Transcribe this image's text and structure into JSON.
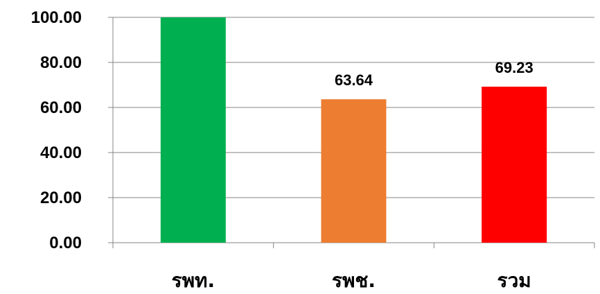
{
  "chart_data": {
    "type": "bar",
    "categories": [
      "รพท.",
      "รพช.",
      "รวม"
    ],
    "values": [
      100.0,
      63.64,
      69.23
    ],
    "data_labels": [
      "",
      "63.64",
      "69.23"
    ],
    "colors": [
      "#00b050",
      "#ed7d31",
      "#ff0000"
    ],
    "ylim": [
      0,
      100
    ],
    "yticks": [
      0,
      20,
      40,
      60,
      80,
      100
    ],
    "ytick_labels": [
      "0.00",
      "20.00",
      "40.00",
      "60.00",
      "80.00",
      "100.00"
    ],
    "grid": true,
    "legend": "none",
    "title": "",
    "xlabel": "",
    "ylabel": ""
  }
}
